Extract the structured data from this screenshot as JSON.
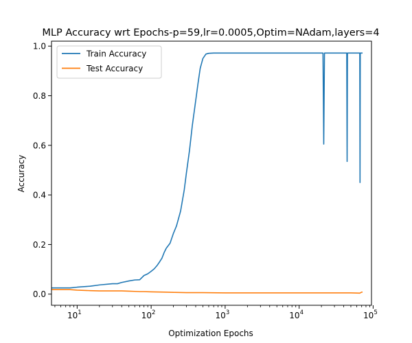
{
  "chart_data": {
    "type": "line",
    "title": "MLP Accuracy wrt Epochs-p=59,lr=0.0005,Optim=NAdam,layers=4",
    "xlabel": "Optimization Epochs",
    "ylabel": "Accuracy",
    "xscale": "log",
    "xlim": [
      4.5,
      95000
    ],
    "ylim": [
      -0.045,
      1.02
    ],
    "legend_position": "top-left",
    "grid": false,
    "xticks": [
      {
        "base": "10",
        "exp": "1",
        "value": 10
      },
      {
        "base": "10",
        "exp": "2",
        "value": 100
      },
      {
        "base": "10",
        "exp": "3",
        "value": 1000
      },
      {
        "base": "10",
        "exp": "4",
        "value": 10000
      },
      {
        "base": "10",
        "exp": "5",
        "value": 100000
      }
    ],
    "yticks": [
      {
        "label": "0.0",
        "value": 0.0
      },
      {
        "label": "0.2",
        "value": 0.2
      },
      {
        "label": "0.4",
        "value": 0.4
      },
      {
        "label": "0.6",
        "value": 0.6
      },
      {
        "label": "0.8",
        "value": 0.8
      },
      {
        "label": "1.0",
        "value": 1.0
      }
    ],
    "series": [
      {
        "name": "Train Accuracy",
        "color": "#1f77b4",
        "points": [
          [
            4.5,
            0.025
          ],
          [
            8,
            0.025
          ],
          [
            10,
            0.028
          ],
          [
            15,
            0.032
          ],
          [
            20,
            0.037
          ],
          [
            30,
            0.042
          ],
          [
            35,
            0.042
          ],
          [
            40,
            0.047
          ],
          [
            50,
            0.053
          ],
          [
            60,
            0.057
          ],
          [
            70,
            0.058
          ],
          [
            80,
            0.075
          ],
          [
            90,
            0.082
          ],
          [
            100,
            0.092
          ],
          [
            110,
            0.102
          ],
          [
            120,
            0.115
          ],
          [
            130,
            0.13
          ],
          [
            140,
            0.145
          ],
          [
            150,
            0.168
          ],
          [
            160,
            0.185
          ],
          [
            180,
            0.205
          ],
          [
            200,
            0.245
          ],
          [
            220,
            0.275
          ],
          [
            250,
            0.335
          ],
          [
            280,
            0.42
          ],
          [
            300,
            0.49
          ],
          [
            330,
            0.58
          ],
          [
            360,
            0.68
          ],
          [
            400,
            0.78
          ],
          [
            430,
            0.85
          ],
          [
            460,
            0.91
          ],
          [
            500,
            0.95
          ],
          [
            550,
            0.968
          ],
          [
            600,
            0.971
          ],
          [
            700,
            0.972
          ],
          [
            1000,
            0.972
          ],
          [
            5000,
            0.972
          ],
          [
            10000,
            0.972
          ],
          [
            21000,
            0.972
          ],
          [
            21500,
            0.605
          ],
          [
            22000,
            0.972
          ],
          [
            44000,
            0.972
          ],
          [
            44500,
            0.535
          ],
          [
            45000,
            0.972
          ],
          [
            66000,
            0.972
          ],
          [
            66500,
            0.45
          ],
          [
            67000,
            0.972
          ],
          [
            72000,
            0.972
          ]
        ]
      },
      {
        "name": "Test Accuracy",
        "color": "#ff7f0e",
        "points": [
          [
            4.5,
            0.018
          ],
          [
            8,
            0.018
          ],
          [
            10,
            0.016
          ],
          [
            15,
            0.014
          ],
          [
            20,
            0.013
          ],
          [
            30,
            0.013
          ],
          [
            40,
            0.013
          ],
          [
            50,
            0.012
          ],
          [
            60,
            0.011
          ],
          [
            70,
            0.01
          ],
          [
            80,
            0.01
          ],
          [
            100,
            0.009
          ],
          [
            150,
            0.008
          ],
          [
            200,
            0.007
          ],
          [
            300,
            0.006
          ],
          [
            500,
            0.006
          ],
          [
            1000,
            0.005
          ],
          [
            3000,
            0.005
          ],
          [
            10000,
            0.005
          ],
          [
            30000,
            0.005
          ],
          [
            50000,
            0.005
          ],
          [
            66000,
            0.004
          ],
          [
            70000,
            0.008
          ],
          [
            72000,
            0.008
          ]
        ]
      }
    ]
  }
}
